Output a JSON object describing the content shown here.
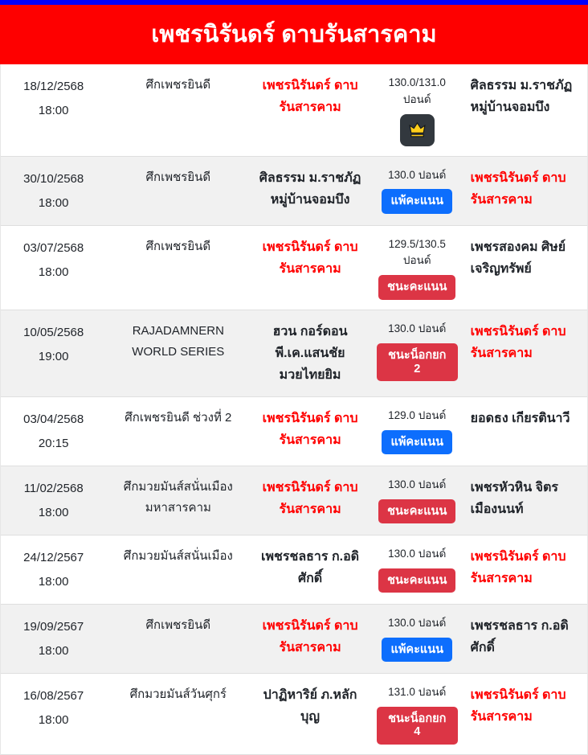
{
  "page": {
    "title": "เพชรนิรันดร์ ดาบรันสารคาม"
  },
  "labels": {
    "pounds_unit": "ปอนด์"
  },
  "colors": {
    "top_strip": "#0000fe",
    "header_bg": "#fe0000",
    "header_text": "#ffffff",
    "highlight_fighter": "#ff0000",
    "win_badge_bg": "#dc3545",
    "loss_badge_bg": "#0d6efd",
    "crown_badge_bg": "#32383e",
    "crown_icon_color": "#ffce1b",
    "alt_row_bg": "#f1f1f1"
  },
  "rows": [
    {
      "date": "18/12/2568",
      "time": "18:00",
      "event": "ศึกเพชรยินดี",
      "fighter_left": {
        "name": "เพชรนิรันดร์ ดาบรันสารคาม",
        "highlight": true
      },
      "weight": "130.0/131.0 ปอนด์",
      "result": {
        "style": "crown",
        "label": "",
        "icon": "crown-icon"
      },
      "fighter_right": {
        "name": "ศิลธรรม ม.ราชภัฏ หมู่บ้านจอมบึง",
        "highlight": false
      }
    },
    {
      "date": "30/10/2568",
      "time": "18:00",
      "event": "ศึกเพชรยินดี",
      "fighter_left": {
        "name": "ศิลธรรม ม.ราชภัฏ หมู่บ้านจอมบึง",
        "highlight": false
      },
      "weight": "130.0 ปอนด์",
      "result": {
        "style": "loss",
        "label": "แพ้คะแนน"
      },
      "fighter_right": {
        "name": "เพชรนิรันดร์ ดาบรันสารคาม",
        "highlight": true
      }
    },
    {
      "date": "03/07/2568",
      "time": "18:00",
      "event": "ศึกเพชรยินดี",
      "fighter_left": {
        "name": "เพชรนิรันดร์ ดาบรันสารคาม",
        "highlight": true
      },
      "weight": "129.5/130.5 ปอนด์",
      "result": {
        "style": "win",
        "label": "ชนะคะแนน"
      },
      "fighter_right": {
        "name": "เพชรสองคม ศิษย์เจริญทรัพย์",
        "highlight": false
      }
    },
    {
      "date": "10/05/2568",
      "time": "19:00",
      "event": "RAJADAMNERN WORLD SERIES",
      "fighter_left": {
        "name": "ฮวน กอร์ดอน พี.เค.แสนชัย มวยไทยยิม",
        "highlight": false
      },
      "weight": "130.0 ปอนด์",
      "result": {
        "style": "win",
        "label": "ชนะน็อกยก 2"
      },
      "fighter_right": {
        "name": "เพชรนิรันดร์ ดาบรันสารคาม",
        "highlight": true
      }
    },
    {
      "date": "03/04/2568",
      "time": "20:15",
      "event": "ศึกเพชรยินดี ช่วงที่ 2",
      "fighter_left": {
        "name": "เพชรนิรันดร์ ดาบรันสารคาม",
        "highlight": true
      },
      "weight": "129.0 ปอนด์",
      "result": {
        "style": "loss",
        "label": "แพ้คะแนน"
      },
      "fighter_right": {
        "name": "ยอดธง เกียรตินาวี",
        "highlight": false
      }
    },
    {
      "date": "11/02/2568",
      "time": "18:00",
      "event": "ศึกมวยมันส์สนั่นเมือง มหาสารคาม",
      "fighter_left": {
        "name": "เพชรนิรันดร์ ดาบรันสารคาม",
        "highlight": true
      },
      "weight": "130.0 ปอนด์",
      "result": {
        "style": "win",
        "label": "ชนะคะแนน"
      },
      "fighter_right": {
        "name": "เพชรหัวหิน จิตรเมืองนนท์",
        "highlight": false
      }
    },
    {
      "date": "24/12/2567",
      "time": "18:00",
      "event": "ศึกมวยมันส์สนั่นเมือง",
      "fighter_left": {
        "name": "เพชรชลธาร ก.อดิศักดิ์",
        "highlight": false
      },
      "weight": "130.0 ปอนด์",
      "result": {
        "style": "win",
        "label": "ชนะคะแนน"
      },
      "fighter_right": {
        "name": "เพชรนิรันดร์ ดาบรันสารคาม",
        "highlight": true
      }
    },
    {
      "date": "19/09/2567",
      "time": "18:00",
      "event": "ศึกเพชรยินดี",
      "fighter_left": {
        "name": "เพชรนิรันดร์ ดาบรันสารคาม",
        "highlight": true
      },
      "weight": "130.0 ปอนด์",
      "result": {
        "style": "loss",
        "label": "แพ้คะแนน"
      },
      "fighter_right": {
        "name": "เพชรชลธาร ก.อดิศักดิ์",
        "highlight": false
      }
    },
    {
      "date": "16/08/2567",
      "time": "18:00",
      "event": "ศึกมวยมันส์วันศุกร์",
      "fighter_left": {
        "name": "ปาฏิหาริย์ ภ.หลักบุญ",
        "highlight": false
      },
      "weight": "131.0 ปอนด์",
      "result": {
        "style": "win",
        "label": "ชนะน็อกยก 4"
      },
      "fighter_right": {
        "name": "เพชรนิรันดร์ ดาบรันสารคาม",
        "highlight": true
      }
    }
  ]
}
